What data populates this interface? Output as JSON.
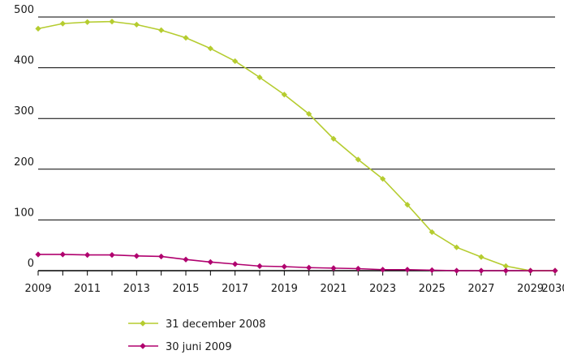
{
  "chart_data": {
    "type": "line",
    "title": "",
    "xlabel": "",
    "ylabel": "",
    "x": [
      2009,
      2010,
      2011,
      2012,
      2013,
      2014,
      2015,
      2016,
      2017,
      2018,
      2019,
      2020,
      2021,
      2022,
      2023,
      2024,
      2025,
      2026,
      2027,
      2028,
      2029,
      2030
    ],
    "x_tick_labels": [
      "2009",
      "2011",
      "2013",
      "2015",
      "2017",
      "2019",
      "2021",
      "2023",
      "2025",
      "2027",
      "2029",
      "2030"
    ],
    "y_tick_labels": [
      "0",
      "100",
      "200",
      "300",
      "400",
      "500"
    ],
    "ylim": [
      0,
      500
    ],
    "grid": "horizontal",
    "legend_position": "bottom",
    "series": [
      {
        "name": "31 december 2008",
        "color": "#b5cc2f",
        "marker": "diamond",
        "values": [
          477,
          487,
          490,
          491,
          485,
          474,
          459,
          438,
          413,
          381,
          347,
          309,
          260,
          219,
          181,
          130,
          76,
          46,
          27,
          9,
          0,
          0
        ]
      },
      {
        "name": "30 juni 2009",
        "color": "#b0006e",
        "marker": "diamond",
        "values": [
          32,
          32,
          31,
          31,
          29,
          28,
          22,
          17,
          13,
          9,
          8,
          6,
          5,
          4,
          2,
          2,
          1,
          0,
          0,
          0,
          0,
          0
        ]
      }
    ]
  }
}
